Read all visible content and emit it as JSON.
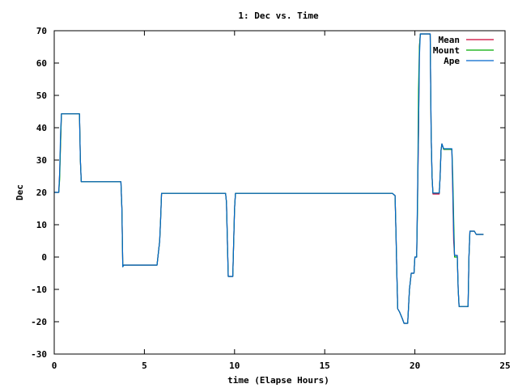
{
  "chart_data": {
    "type": "line",
    "title": "1: Dec vs. Time",
    "xlabel": "time (Elapse Hours)",
    "ylabel": "Dec",
    "xlim": [
      0,
      25
    ],
    "ylim": [
      -30,
      70
    ],
    "xticks": [
      "0",
      "5",
      "10",
      "15",
      "20",
      "25"
    ],
    "yticks": [
      "-30",
      "-20",
      "-10",
      "0",
      "10",
      "20",
      "30",
      "40",
      "50",
      "60",
      "70"
    ],
    "xtick_values": [
      0,
      5,
      10,
      15,
      20,
      25
    ],
    "ytick_values": [
      -30,
      -20,
      -10,
      0,
      10,
      20,
      30,
      40,
      50,
      60,
      70
    ],
    "grid": false,
    "legend_position": "top-right",
    "series": [
      {
        "name": "Mean",
        "color": "#cc0033",
        "points": [
          [
            0.0,
            20
          ],
          [
            0.25,
            20
          ],
          [
            0.3,
            26
          ],
          [
            0.35,
            35
          ],
          [
            0.4,
            44.3
          ],
          [
            1.4,
            44.3
          ],
          [
            1.45,
            30
          ],
          [
            1.5,
            23.3
          ],
          [
            3.7,
            23.3
          ],
          [
            3.75,
            15
          ],
          [
            3.8,
            -3
          ],
          [
            3.85,
            -2.5
          ],
          [
            5.7,
            -2.5
          ],
          [
            5.85,
            5
          ],
          [
            5.9,
            12
          ],
          [
            5.95,
            19.7
          ],
          [
            9.5,
            19.7
          ],
          [
            9.55,
            17
          ],
          [
            9.65,
            -6
          ],
          [
            9.9,
            -6
          ],
          [
            10.0,
            15
          ],
          [
            10.05,
            19.7
          ],
          [
            18.75,
            19.7
          ],
          [
            18.9,
            19
          ],
          [
            18.95,
            8
          ],
          [
            19.0,
            -5
          ],
          [
            19.05,
            -16
          ],
          [
            19.15,
            -17
          ],
          [
            19.3,
            -19
          ],
          [
            19.4,
            -20.5
          ],
          [
            19.6,
            -20.5
          ],
          [
            19.7,
            -10
          ],
          [
            19.8,
            -5
          ],
          [
            19.95,
            -5
          ],
          [
            20.0,
            0
          ],
          [
            20.1,
            0
          ],
          [
            20.15,
            18
          ],
          [
            20.2,
            38
          ],
          [
            20.25,
            65
          ],
          [
            20.3,
            69
          ],
          [
            20.85,
            69
          ],
          [
            20.9,
            38
          ],
          [
            20.95,
            25
          ],
          [
            21.0,
            19.5
          ],
          [
            21.35,
            19.5
          ],
          [
            21.4,
            25
          ],
          [
            21.45,
            33
          ],
          [
            21.5,
            35
          ],
          [
            21.6,
            33.3
          ],
          [
            22.05,
            33.3
          ],
          [
            22.1,
            20
          ],
          [
            22.15,
            5
          ],
          [
            22.2,
            0.5
          ],
          [
            22.35,
            0.5
          ],
          [
            22.4,
            -10
          ],
          [
            22.45,
            -15.3
          ],
          [
            22.95,
            -15.3
          ],
          [
            23.0,
            0
          ],
          [
            23.05,
            8
          ],
          [
            23.3,
            8
          ],
          [
            23.4,
            7
          ],
          [
            23.8,
            7
          ]
        ]
      },
      {
        "name": "Mount",
        "color": "#00aa00",
        "points": [
          [
            0.0,
            20
          ],
          [
            0.25,
            20
          ],
          [
            0.3,
            24
          ],
          [
            0.35,
            35
          ],
          [
            0.4,
            44.3
          ],
          [
            1.4,
            44.3
          ],
          [
            1.45,
            30
          ],
          [
            1.5,
            23.3
          ],
          [
            3.7,
            23.3
          ],
          [
            3.75,
            15
          ],
          [
            3.8,
            -3
          ],
          [
            3.85,
            -2.5
          ],
          [
            5.7,
            -2.5
          ],
          [
            5.85,
            5
          ],
          [
            5.9,
            12
          ],
          [
            5.95,
            19.7
          ],
          [
            9.5,
            19.7
          ],
          [
            9.55,
            17
          ],
          [
            9.65,
            -6
          ],
          [
            9.9,
            -6
          ],
          [
            10.0,
            15
          ],
          [
            10.05,
            19.7
          ],
          [
            18.75,
            19.7
          ],
          [
            18.9,
            19
          ],
          [
            18.95,
            8
          ],
          [
            19.0,
            -5
          ],
          [
            19.05,
            -16
          ],
          [
            19.15,
            -17
          ],
          [
            19.3,
            -19
          ],
          [
            19.4,
            -20.5
          ],
          [
            19.6,
            -20.5
          ],
          [
            19.7,
            -10
          ],
          [
            19.8,
            -5
          ],
          [
            19.95,
            -5
          ],
          [
            20.0,
            0
          ],
          [
            20.1,
            0
          ],
          [
            20.15,
            16
          ],
          [
            20.2,
            52
          ],
          [
            20.25,
            65
          ],
          [
            20.3,
            69
          ],
          [
            20.85,
            69
          ],
          [
            20.9,
            38
          ],
          [
            20.95,
            25
          ],
          [
            21.0,
            19.8
          ],
          [
            21.35,
            19.8
          ],
          [
            21.4,
            25
          ],
          [
            21.45,
            33
          ],
          [
            21.5,
            35
          ],
          [
            21.6,
            33.3
          ],
          [
            22.05,
            33.3
          ],
          [
            22.1,
            25
          ],
          [
            22.15,
            12
          ],
          [
            22.2,
            0
          ],
          [
            22.35,
            0
          ],
          [
            22.4,
            -10
          ],
          [
            22.45,
            -15.3
          ],
          [
            22.95,
            -15.3
          ],
          [
            23.0,
            0
          ],
          [
            23.05,
            8
          ],
          [
            23.3,
            8
          ],
          [
            23.4,
            7
          ],
          [
            23.8,
            7
          ]
        ]
      },
      {
        "name": "Ape",
        "color": "#0066cc",
        "points": [
          [
            0.0,
            20
          ],
          [
            0.25,
            20
          ],
          [
            0.3,
            26
          ],
          [
            0.35,
            38
          ],
          [
            0.4,
            44.3
          ],
          [
            1.4,
            44.3
          ],
          [
            1.45,
            30
          ],
          [
            1.5,
            23.3
          ],
          [
            3.7,
            23.3
          ],
          [
            3.75,
            15
          ],
          [
            3.8,
            -3
          ],
          [
            3.85,
            -2.5
          ],
          [
            5.7,
            -2.5
          ],
          [
            5.85,
            5
          ],
          [
            5.9,
            12
          ],
          [
            5.95,
            19.7
          ],
          [
            9.5,
            19.7
          ],
          [
            9.55,
            17
          ],
          [
            9.65,
            -6
          ],
          [
            9.9,
            -6
          ],
          [
            10.0,
            15
          ],
          [
            10.05,
            19.7
          ],
          [
            18.75,
            19.7
          ],
          [
            18.9,
            19
          ],
          [
            18.95,
            8
          ],
          [
            19.0,
            -5
          ],
          [
            19.05,
            -16
          ],
          [
            19.15,
            -17
          ],
          [
            19.3,
            -19
          ],
          [
            19.4,
            -20.5
          ],
          [
            19.6,
            -20.5
          ],
          [
            19.7,
            -10
          ],
          [
            19.8,
            -5
          ],
          [
            19.95,
            -5
          ],
          [
            20.0,
            0
          ],
          [
            20.1,
            0
          ],
          [
            20.15,
            20
          ],
          [
            20.2,
            40
          ],
          [
            20.25,
            62
          ],
          [
            20.3,
            69
          ],
          [
            20.85,
            69
          ],
          [
            20.9,
            38
          ],
          [
            20.95,
            25
          ],
          [
            21.0,
            19.8
          ],
          [
            21.35,
            19.8
          ],
          [
            21.4,
            25
          ],
          [
            21.45,
            33
          ],
          [
            21.5,
            35
          ],
          [
            21.6,
            33.5
          ],
          [
            22.05,
            33.5
          ],
          [
            22.1,
            22
          ],
          [
            22.15,
            8
          ],
          [
            22.2,
            0.5
          ],
          [
            22.35,
            0.5
          ],
          [
            22.4,
            -10
          ],
          [
            22.45,
            -15.3
          ],
          [
            22.95,
            -15.3
          ],
          [
            23.0,
            0
          ],
          [
            23.05,
            8
          ],
          [
            23.3,
            8
          ],
          [
            23.4,
            7
          ],
          [
            23.8,
            7
          ]
        ]
      }
    ]
  }
}
